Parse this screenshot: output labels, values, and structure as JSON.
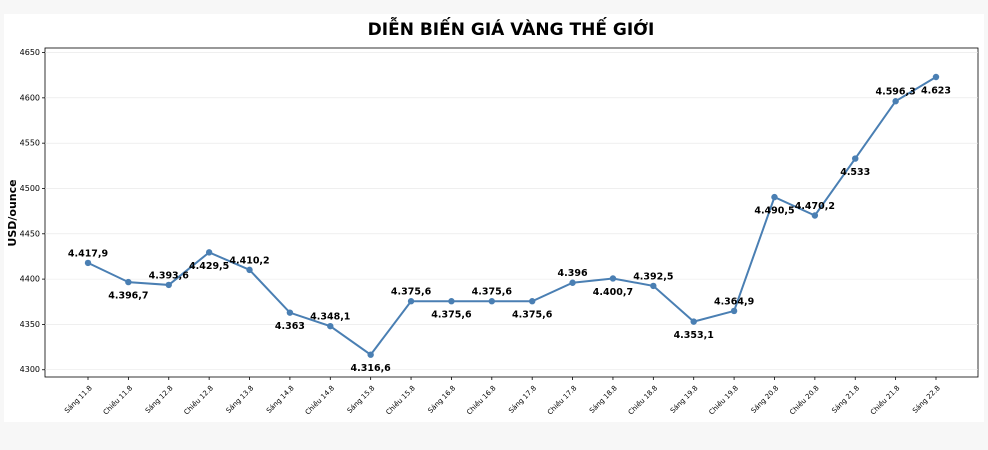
{
  "chart_data": {
    "type": "line",
    "title": "DIỄN BIẾN GIÁ VÀNG THẾ GIỚI",
    "y_label": "USD/ounce",
    "categories": [
      "Sáng 11.8",
      "Chiều 11.8",
      "Sáng 12.8",
      "Chiều 12.8",
      "Sáng 13.8",
      "Sáng 14.8",
      "Chiều 14.8",
      "Sáng 15.8",
      "Chiều 15.8",
      "Sáng 16.8",
      "Chiều 16.8",
      "Sáng 17.8",
      "Chiều 17.8",
      "Sáng 18.8",
      "Chiều 18.8",
      "Sáng 19.8",
      "Chiều 19.8",
      "Sáng 20.8",
      "Chiều 20.8",
      "Sáng 21.8",
      "Chiều 21.8",
      "Sáng 22.8"
    ],
    "values": [
      4417.9,
      4396.7,
      4393.6,
      4429.5,
      4410.2,
      4363,
      4348.1,
      4316.6,
      4375.6,
      4375.6,
      4375.6,
      4375.6,
      4396,
      4400.7,
      4392.5,
      4353.1,
      4364.9,
      4490.5,
      4470.2,
      4533,
      4596.3,
      4623
    ],
    "value_labels": [
      "4.417,9",
      "4.396,7",
      "4.393,6",
      "4.429,5",
      "4.410,2",
      "4.363",
      "4.348,1",
      "4.316,6",
      "4.375,6",
      "4.375,6",
      "4.375,6",
      "4.375,6",
      "4.396",
      "4.400,7",
      "4.392,5",
      "4.353,1",
      "4.364,9",
      "4.490,5",
      "4.470,2",
      "4.533",
      "4.596,3",
      "4.623"
    ],
    "color": "#4a7fb3",
    "ylim": [
      4292,
      4655
    ],
    "yticks": [
      4300,
      4350,
      4400,
      4450,
      4500,
      4550,
      4600,
      4650
    ],
    "grid": true
  }
}
